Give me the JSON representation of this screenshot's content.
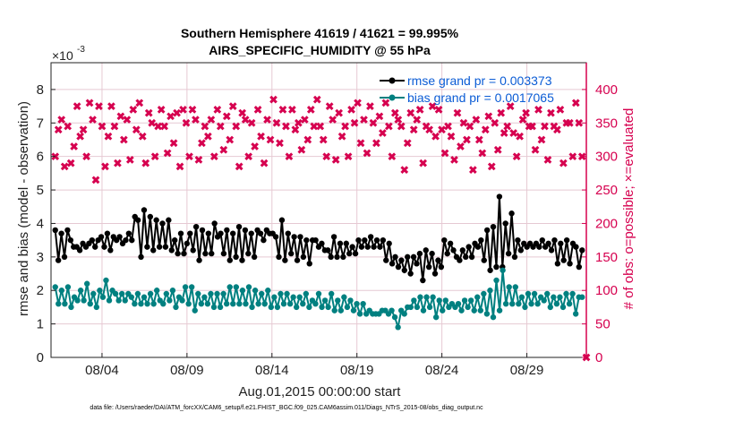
{
  "chart_data": {
    "type": "line",
    "title": "Southern Hemisphere 41619 / 41621 = 99.995%",
    "subtitle": "AIRS_SPECIFIC_HUMIDITY @ 55 hPa",
    "xlabel": "Aug.01,2015 00:00:00 start",
    "ylabel": "rmse and bias (model - observation)",
    "y2label": "# of obs: o=possible; ×=evaluated",
    "y_exponent_base": "×10",
    "y_exponent_power": "-3",
    "xlim": [
      1,
      32.5
    ],
    "ylim": [
      0,
      8.8
    ],
    "y2lim": [
      0,
      440
    ],
    "x_ticks": [
      4,
      9,
      14,
      19,
      24,
      29
    ],
    "x_tick_labels": [
      "08/04",
      "08/09",
      "08/14",
      "08/19",
      "08/24",
      "08/29"
    ],
    "y_ticks": [
      0,
      1,
      2,
      3,
      4,
      5,
      6,
      7,
      8
    ],
    "y_tick_labels": [
      "0",
      "1",
      "2",
      "3",
      "4",
      "5",
      "6",
      "7",
      "8"
    ],
    "y2_ticks": [
      0,
      50,
      100,
      150,
      200,
      250,
      300,
      350,
      400
    ],
    "y2_tick_labels": [
      "0",
      "50",
      "100",
      "150",
      "200",
      "250",
      "300",
      "350",
      "400"
    ],
    "grid": true,
    "legend_placement": "top-right",
    "footnote": "data file: /Users/raeder/DAI/ATM_forcXX/CAM6_setup/f.e21.FHIST_BGC.f09_025.CAM6assim.011/Diags_NTrS_2015-08/obs_diag_output.nc",
    "colors": {
      "rmse": "#000000",
      "bias": "#008080",
      "nobs": "#d6004f",
      "legend_text": "#0b5cd5"
    },
    "series": [
      {
        "name": "rmse grand pr = 0.003373",
        "axis": "left",
        "marker": "filled-circle",
        "values": [
          3.8,
          2.9,
          3.7,
          3.0,
          3.8,
          3.5,
          3.3,
          3.3,
          3.2,
          3.4,
          3.3,
          3.4,
          3.5,
          3.3,
          3.5,
          3.6,
          3.3,
          3.7,
          3.2,
          3.6,
          3.5,
          3.6,
          3.4,
          3.5,
          3.7,
          3.5,
          4.2,
          4.1,
          3.0,
          4.4,
          3.3,
          4.2,
          3.2,
          4.1,
          3.3,
          4.0,
          3.3,
          4.1,
          3.2,
          3.5,
          3.1,
          3.7,
          3.1,
          3.4,
          3.7,
          3.2,
          3.9,
          2.9,
          3.8,
          3.1,
          3.7,
          3.1,
          4.0,
          3.6,
          3.7,
          3.1,
          3.8,
          2.9,
          3.7,
          3.0,
          3.9,
          2.9,
          3.8,
          3.1,
          3.7,
          3.0,
          3.8,
          3.7,
          3.5,
          3.8,
          3.7,
          3.7,
          3.6,
          3.0,
          4.1,
          2.9,
          3.7,
          3.1,
          3.6,
          2.9,
          3.6,
          3.0,
          3.5,
          2.8,
          3.5,
          3.5,
          3.3,
          3.4,
          3.2,
          3.2,
          3.0,
          3.6,
          3.0,
          3.4,
          3.0,
          3.4,
          3.1,
          3.3,
          3.1,
          3.5,
          3.3,
          3.5,
          3.3,
          3.6,
          3.3,
          3.5,
          3.3,
          3.5,
          2.9,
          3.4,
          2.8,
          3.0,
          2.7,
          2.9,
          2.6,
          3.0,
          2.5,
          3.0,
          2.8,
          3.1,
          2.3,
          3.2,
          2.7,
          3.1,
          2.5,
          2.9,
          2.7,
          3.5,
          3.1,
          3.4,
          3.2,
          3.0,
          2.9,
          3.2,
          3.0,
          3.3,
          3.0,
          3.4,
          3.3,
          3.5,
          2.9,
          3.8,
          2.6,
          3.9,
          2.7,
          4.8,
          2.7,
          4.0,
          3.1,
          4.3,
          3.0,
          3.5,
          3.2,
          3.4,
          3.3,
          3.4,
          3.3,
          3.4,
          3.3,
          3.5,
          3.3,
          3.4,
          3.2,
          3.5,
          2.8,
          3.4,
          2.9,
          3.5,
          2.8,
          3.4,
          3.3,
          2.7,
          3.2
        ]
      },
      {
        "name": "bias grand pr = 0.0017065",
        "axis": "left",
        "marker": "filled-circle",
        "values": [
          2.1,
          1.6,
          2.0,
          1.6,
          2.1,
          1.5,
          1.8,
          1.7,
          2.0,
          1.7,
          2.2,
          1.6,
          1.9,
          1.5,
          2.0,
          1.8,
          2.3,
          1.7,
          2.0,
          1.9,
          1.7,
          1.9,
          1.7,
          1.9,
          1.8,
          1.6,
          1.9,
          1.6,
          1.8,
          1.6,
          1.9,
          1.6,
          2.0,
          1.7,
          1.6,
          1.9,
          1.7,
          2.0,
          1.5,
          1.8,
          1.7,
          2.1,
          1.6,
          2.1,
          1.4,
          1.9,
          1.6,
          1.8,
          1.6,
          1.9,
          1.5,
          1.9,
          1.5,
          1.9,
          1.6,
          2.1,
          1.6,
          2.1,
          1.6,
          2.0,
          1.6,
          2.1,
          1.5,
          2.0,
          1.6,
          1.9,
          1.6,
          2.0,
          1.5,
          1.8,
          1.5,
          1.9,
          1.6,
          1.9,
          1.6,
          1.8,
          1.5,
          1.8,
          1.6,
          1.9,
          1.5,
          1.7,
          1.6,
          1.9,
          1.5,
          1.7,
          1.5,
          1.9,
          1.4,
          1.7,
          1.4,
          1.8,
          1.5,
          1.7,
          1.4,
          1.6,
          1.3,
          1.6,
          1.3,
          1.4,
          1.3,
          1.3,
          1.3,
          1.4,
          1.4,
          1.3,
          1.4,
          1.2,
          0.9,
          1.4,
          1.3,
          1.5,
          1.5,
          1.7,
          1.5,
          1.8,
          1.4,
          1.8,
          1.5,
          1.8,
          1.2,
          1.7,
          1.4,
          1.7,
          1.5,
          1.6,
          1.5,
          1.6,
          1.4,
          1.7,
          1.5,
          1.7,
          1.4,
          1.8,
          1.4,
          1.9,
          1.3,
          2.0,
          1.2,
          2.3,
          1.4,
          2.6,
          1.6,
          2.1,
          1.6,
          2.1,
          1.6,
          1.8,
          1.5,
          1.9,
          1.6,
          1.9,
          1.6,
          1.8,
          1.7,
          1.9,
          1.5,
          1.8,
          1.6,
          1.8,
          1.5,
          1.9,
          1.6,
          1.9,
          1.3,
          1.8,
          1.8
        ]
      },
      {
        "name": "# of obs evaluated",
        "axis": "right",
        "marker": "x",
        "values": [
          300,
          340,
          355,
          285,
          345,
          290,
          315,
          375,
          330,
          340,
          300,
          380,
          355,
          265,
          375,
          345,
          285,
          330,
          375,
          345,
          290,
          360,
          325,
          355,
          295,
          370,
          340,
          380,
          330,
          290,
          365,
          350,
          300,
          345,
          370,
          345,
          305,
          360,
          320,
          365,
          285,
          370,
          350,
          300,
          370,
          355,
          295,
          320,
          345,
          330,
          355,
          300,
          370,
          345,
          310,
          360,
          325,
          375,
          345,
          285,
          365,
          355,
          300,
          350,
          315,
          370,
          330,
          290,
          355,
          325,
          385,
          350,
          320,
          370,
          345,
          300,
          370,
          340,
          350,
          310,
          355,
          325,
          370,
          345,
          385,
          345,
          325,
          300,
          375,
          355,
          295,
          365,
          330,
          345,
          300,
          370,
          350,
          380,
          320,
          355,
          305,
          375,
          350,
          320,
          360,
          335,
          380,
          345,
          300,
          365,
          355,
          345,
          280,
          320,
          365,
          340,
          355,
          370,
          290,
          345,
          340,
          375,
          330,
          370,
          340,
          305,
          345,
          330,
          295,
          365,
          315,
          350,
          325,
          345,
          280,
          355,
          325,
          305,
          340,
          360,
          285,
          350,
          310,
          365,
          335,
          345,
          375,
          335,
          300,
          330,
          355,
          365,
          345,
          345,
          310,
          370,
          325,
          345,
          295,
          365,
          345,
          340,
          370,
          290,
          350,
          350,
          300,
          380,
          350,
          300
        ]
      }
    ],
    "nobs_points_extra": [
      [
        32.5,
        0
      ]
    ]
  }
}
